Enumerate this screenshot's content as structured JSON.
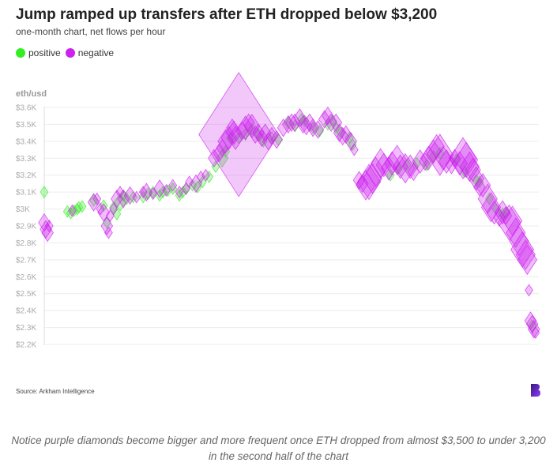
{
  "title": "Jump ramped up transfers after ETH dropped below $3,200",
  "subtitle": "one-month chart, net flows per hour",
  "legend": [
    {
      "label": "positive",
      "color": "#33ee22"
    },
    {
      "label": "negative",
      "color": "#cc22ee"
    }
  ],
  "source": "Source: Arkham Intelligence",
  "caption": "Notice purple diamonds become bigger and more frequent once ETH dropped from almost $3,500 to under 3,200 in the second half of the chart",
  "chart_data": {
    "type": "scatter",
    "title": "Jump ramped up transfers after ETH dropped below $3,200",
    "subtitle": "one-month chart, net flows per hour",
    "ylabel": "eth/usd",
    "ylim": [
      2200,
      3600
    ],
    "yticks": [
      2200,
      2300,
      2400,
      2500,
      2600,
      2700,
      2800,
      2900,
      3000,
      3100,
      3200,
      3300,
      3400,
      3500,
      3600
    ],
    "ytick_labels": [
      "$2.2K",
      "$2.3K",
      "$2.4K",
      "$2.5K",
      "$2.6K",
      "$2.7K",
      "$2.8K",
      "$2.9K",
      "$3K",
      "$3.1K",
      "$3.2K",
      "$3.3K",
      "$3.4K",
      "$3.5K",
      "$3.6K"
    ],
    "grid": true,
    "legend_position": "top-left",
    "marker": "diamond",
    "size_encoding": "magnitude of hourly net flow (relative)",
    "x_unit": "hour index over one month",
    "series": [
      {
        "name": "positive",
        "color": "#33ee22",
        "points": [
          [
            0,
            3100,
            1
          ],
          [
            14,
            2985,
            1
          ],
          [
            16,
            2975,
            1
          ],
          [
            18,
            2990,
            1
          ],
          [
            20,
            3000,
            1
          ],
          [
            21,
            3010,
            1
          ],
          [
            23,
            3015,
            1
          ],
          [
            30,
            3050,
            1
          ],
          [
            36,
            3020,
            1
          ],
          [
            38,
            2920,
            1
          ],
          [
            42,
            3010,
            1
          ],
          [
            44,
            2970,
            1
          ],
          [
            46,
            3040,
            2
          ],
          [
            48,
            3080,
            1
          ],
          [
            50,
            3060,
            1
          ],
          [
            54,
            3070,
            1
          ],
          [
            60,
            3070,
            1
          ],
          [
            63,
            3090,
            1
          ],
          [
            66,
            3100,
            1
          ],
          [
            70,
            3080,
            1
          ],
          [
            72,
            3100,
            1
          ],
          [
            75,
            3110,
            1
          ],
          [
            78,
            3120,
            1
          ],
          [
            82,
            3080,
            1
          ],
          [
            84,
            3100,
            1
          ],
          [
            86,
            3120,
            1
          ],
          [
            90,
            3140,
            1
          ],
          [
            93,
            3130,
            1
          ],
          [
            96,
            3160,
            1
          ],
          [
            100,
            3190,
            1
          ],
          [
            104,
            3250,
            1
          ],
          [
            108,
            3300,
            2
          ],
          [
            110,
            3340,
            1
          ],
          [
            113,
            3420,
            1
          ],
          [
            118,
            3420,
            1
          ],
          [
            122,
            3440,
            1
          ],
          [
            126,
            3470,
            1
          ],
          [
            130,
            3440,
            1
          ],
          [
            133,
            3400,
            1
          ],
          [
            138,
            3420,
            1
          ],
          [
            142,
            3410,
            1
          ],
          [
            148,
            3510,
            1
          ],
          [
            152,
            3490,
            1
          ],
          [
            156,
            3530,
            1
          ],
          [
            158,
            3520,
            1
          ],
          [
            163,
            3480,
            1
          ],
          [
            167,
            3460,
            1
          ],
          [
            172,
            3500,
            1
          ],
          [
            175,
            3520,
            1
          ],
          [
            177,
            3480,
            1
          ],
          [
            180,
            3450,
            1
          ],
          [
            185,
            3420,
            1
          ],
          [
            187,
            3380,
            1
          ],
          [
            210,
            3200,
            1
          ],
          [
            215,
            3240,
            1
          ],
          [
            220,
            3260,
            1
          ],
          [
            226,
            3270,
            1
          ],
          [
            232,
            3260,
            1
          ],
          [
            236,
            3310,
            1
          ],
          [
            240,
            3330,
            1
          ],
          [
            250,
            3290,
            1
          ],
          [
            255,
            3220,
            1
          ],
          [
            262,
            3170,
            1
          ],
          [
            264,
            3160,
            1
          ],
          [
            270,
            3060,
            1
          ],
          [
            274,
            3000,
            1
          ],
          [
            278,
            2970,
            1
          ],
          [
            280,
            2980,
            1
          ],
          [
            296,
            2310,
            1
          ]
        ]
      },
      {
        "name": "negative",
        "color": "#cc22ee",
        "points": [
          [
            0,
            2920,
            2
          ],
          [
            1,
            2880,
            2
          ],
          [
            2,
            2860,
            2
          ],
          [
            3,
            2900,
            1
          ],
          [
            17,
            2990,
            1
          ],
          [
            30,
            3040,
            2
          ],
          [
            32,
            3060,
            1
          ],
          [
            34,
            3000,
            1
          ],
          [
            36,
            2980,
            2
          ],
          [
            38,
            2900,
            2
          ],
          [
            39,
            2860,
            1
          ],
          [
            40,
            2960,
            1
          ],
          [
            42,
            3000,
            1
          ],
          [
            44,
            3060,
            2
          ],
          [
            46,
            3100,
            1
          ],
          [
            48,
            3060,
            2
          ],
          [
            52,
            3080,
            2
          ],
          [
            56,
            3070,
            1
          ],
          [
            60,
            3100,
            1
          ],
          [
            62,
            3100,
            2
          ],
          [
            66,
            3090,
            1
          ],
          [
            70,
            3120,
            2
          ],
          [
            74,
            3110,
            1
          ],
          [
            78,
            3140,
            1
          ],
          [
            82,
            3100,
            1
          ],
          [
            86,
            3120,
            1
          ],
          [
            88,
            3160,
            1
          ],
          [
            92,
            3150,
            2
          ],
          [
            95,
            3190,
            1
          ],
          [
            98,
            3200,
            1
          ],
          [
            103,
            3300,
            2
          ],
          [
            106,
            3330,
            2
          ],
          [
            108,
            3360,
            2
          ],
          [
            110,
            3400,
            3
          ],
          [
            112,
            3420,
            3
          ],
          [
            114,
            3480,
            2
          ],
          [
            115,
            3450,
            3
          ],
          [
            116,
            3420,
            3
          ],
          [
            118,
            3440,
            20
          ],
          [
            120,
            3460,
            2
          ],
          [
            122,
            3480,
            3
          ],
          [
            124,
            3510,
            2
          ],
          [
            126,
            3490,
            3
          ],
          [
            128,
            3440,
            2
          ],
          [
            130,
            3450,
            2
          ],
          [
            132,
            3420,
            2
          ],
          [
            134,
            3450,
            2
          ],
          [
            136,
            3400,
            2
          ],
          [
            138,
            3430,
            2
          ],
          [
            141,
            3410,
            2
          ],
          [
            145,
            3480,
            2
          ],
          [
            148,
            3500,
            2
          ],
          [
            150,
            3510,
            2
          ],
          [
            152,
            3510,
            2
          ],
          [
            155,
            3540,
            2
          ],
          [
            157,
            3500,
            2
          ],
          [
            159,
            3490,
            2
          ],
          [
            161,
            3510,
            2
          ],
          [
            163,
            3480,
            2
          ],
          [
            166,
            3470,
            2
          ],
          [
            170,
            3530,
            2
          ],
          [
            172,
            3550,
            2
          ],
          [
            174,
            3510,
            2
          ],
          [
            177,
            3510,
            2
          ],
          [
            179,
            3450,
            2
          ],
          [
            181,
            3430,
            2
          ],
          [
            183,
            3440,
            2
          ],
          [
            186,
            3400,
            2
          ],
          [
            188,
            3350,
            1
          ],
          [
            191,
            3170,
            2
          ],
          [
            193,
            3150,
            2
          ],
          [
            195,
            3140,
            4
          ],
          [
            197,
            3160,
            5
          ],
          [
            199,
            3180,
            4
          ],
          [
            201,
            3220,
            4
          ],
          [
            204,
            3270,
            4
          ],
          [
            206,
            3260,
            3
          ],
          [
            209,
            3240,
            3
          ],
          [
            211,
            3270,
            3
          ],
          [
            214,
            3290,
            4
          ],
          [
            216,
            3250,
            3
          ],
          [
            219,
            3240,
            4
          ],
          [
            222,
            3250,
            3
          ],
          [
            224,
            3220,
            2
          ],
          [
            228,
            3280,
            3
          ],
          [
            231,
            3280,
            2
          ],
          [
            233,
            3300,
            3
          ],
          [
            236,
            3340,
            3
          ],
          [
            238,
            3370,
            3
          ],
          [
            240,
            3320,
            6
          ],
          [
            242,
            3300,
            3
          ],
          [
            244,
            3280,
            3
          ],
          [
            247,
            3260,
            2
          ],
          [
            249,
            3300,
            2
          ],
          [
            252,
            3270,
            3
          ],
          [
            254,
            3300,
            6
          ],
          [
            256,
            3290,
            5
          ],
          [
            258,
            3250,
            4
          ],
          [
            260,
            3230,
            3
          ],
          [
            262,
            3180,
            3
          ],
          [
            264,
            3130,
            2
          ],
          [
            266,
            3140,
            3
          ],
          [
            269,
            3060,
            4
          ],
          [
            271,
            3010,
            4
          ],
          [
            273,
            2980,
            3
          ],
          [
            276,
            2950,
            2
          ],
          [
            278,
            2980,
            3
          ],
          [
            280,
            2960,
            2
          ],
          [
            282,
            2920,
            5
          ],
          [
            284,
            2930,
            4
          ],
          [
            286,
            2860,
            4
          ],
          [
            288,
            2810,
            4
          ],
          [
            290,
            2760,
            5
          ],
          [
            292,
            2730,
            4
          ],
          [
            293,
            2700,
            4
          ],
          [
            294,
            2520,
            1
          ],
          [
            295,
            2340,
            2
          ],
          [
            296,
            2320,
            2
          ],
          [
            297,
            2290,
            2
          ],
          [
            298,
            2270,
            1
          ]
        ]
      }
    ]
  }
}
